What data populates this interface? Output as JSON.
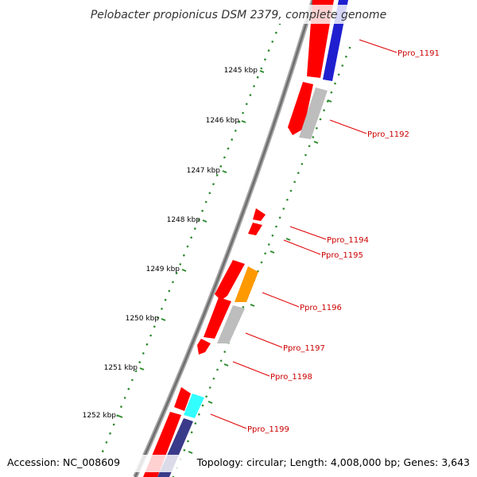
{
  "title": "Pelobacter propionicus DSM 2379, complete genome",
  "footer": {
    "accession": "Accession: NC_008609",
    "summary": "Topology: circular; Length: 4,008,000 bp; Genes: 3,643"
  },
  "colors": {
    "backbone": "#808080",
    "tick": "#2e8b2e",
    "gene_forward": "#ff0000",
    "label": "#cc0000",
    "leader_line": "#e00000"
  },
  "kbp_ticks": [
    "1245 kbp",
    "1246 kbp",
    "1247 kbp",
    "1248 kbp",
    "1249 kbp",
    "1250 kbp",
    "1251 kbp",
    "1252 kbp"
  ],
  "gene_labels": [
    "Ppro_1191",
    "Ppro_1192",
    "Ppro_1194",
    "Ppro_1195",
    "Ppro_1196",
    "Ppro_1197",
    "Ppro_1198",
    "Ppro_1199"
  ],
  "feature_colors": {
    "red": "#ff0000",
    "grey": "#bdbdbd",
    "blue": "#1f1fcf",
    "orange": "#ff9900",
    "cyan": "#33ffff",
    "navy": "#3a3a8a"
  }
}
